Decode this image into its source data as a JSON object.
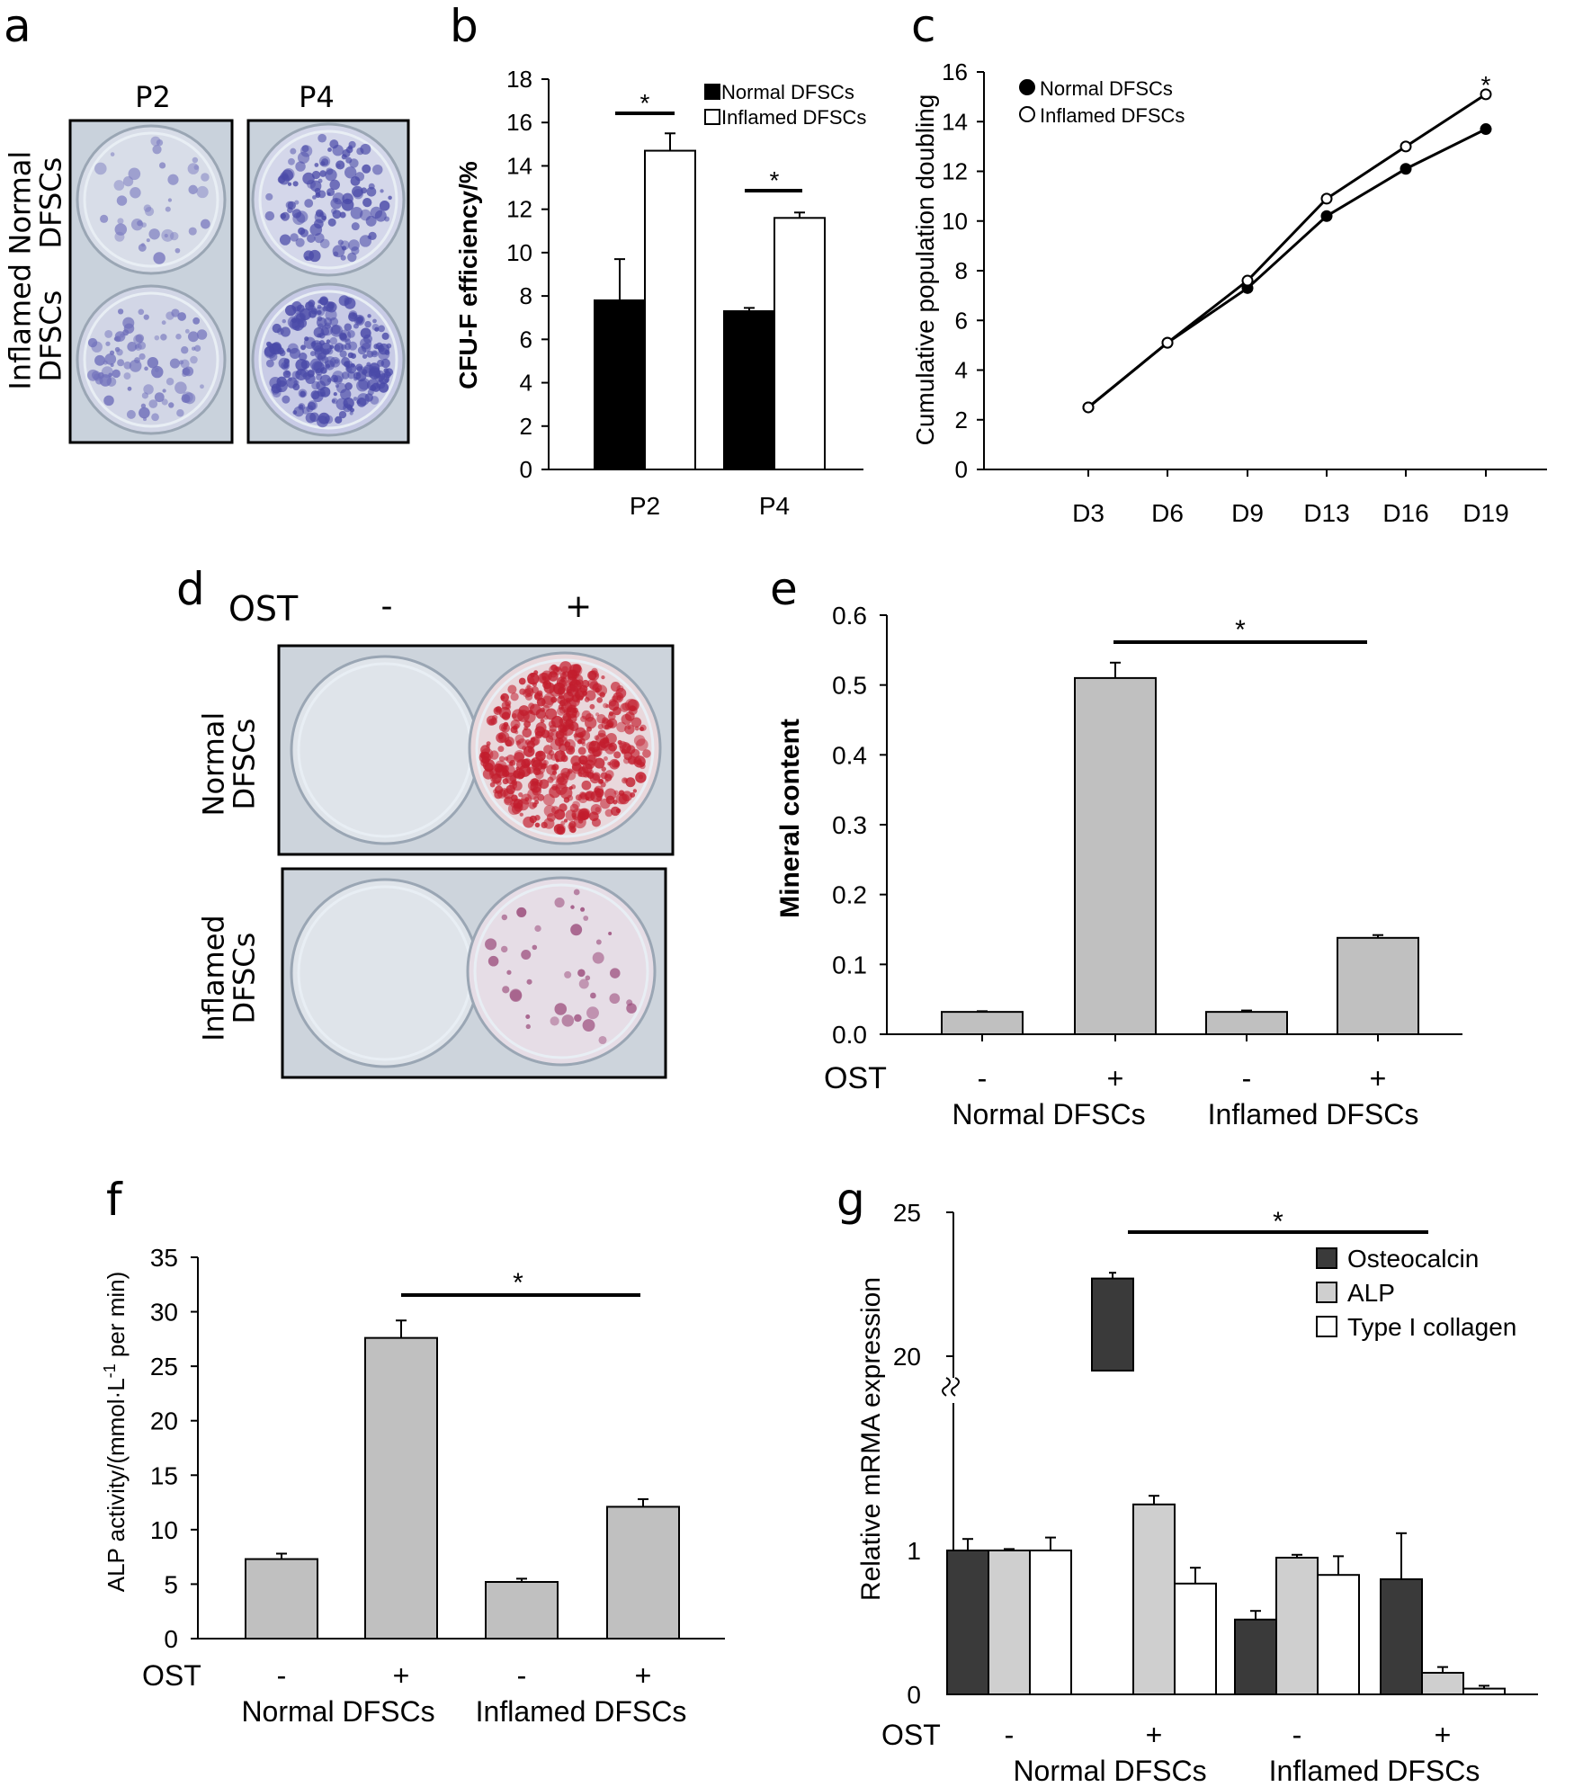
{
  "panels": {
    "a": "a",
    "b": "b",
    "c": "c",
    "d": "d",
    "e": "e",
    "f": "f",
    "g": "g"
  },
  "photo_a": {
    "col1": "P2",
    "col2": "P4",
    "row1_l1": "Normal",
    "row1_l2": "DFSCs",
    "row2_l1": "Inflamed",
    "row2_l2": "DFSCs"
  },
  "photo_d": {
    "ost": "OST",
    "minus": "-",
    "plus": "+",
    "row1_l1": "Normal",
    "row1_l2": "DFSCs",
    "row2_l1": "Inflamed",
    "row2_l2": "DFSCs"
  },
  "colors": {
    "black": "#000000",
    "white": "#ffffff",
    "gray": "#c0c0c0",
    "dark": "#3a3a3a",
    "light": "#cfcfcf",
    "plate_bg": "#c9d2dc",
    "stain_blue": "#4a4aa8",
    "stain_red": "#c21d2d"
  },
  "chart_data": [
    {
      "id": "b",
      "type": "bar",
      "title": "",
      "ylabel": "CFU-F efficiency/%",
      "ylim": [
        0,
        18
      ],
      "yticks": [
        0,
        2,
        4,
        6,
        8,
        10,
        12,
        14,
        16,
        18
      ],
      "categories": [
        "P2",
        "P4"
      ],
      "series": [
        {
          "name": "Normal DFSCs",
          "values": [
            7.8,
            7.3
          ],
          "errors": [
            1.9,
            0.15
          ],
          "color": "#000000"
        },
        {
          "name": "Inflamed DFSCs",
          "values": [
            14.7,
            11.6
          ],
          "errors": [
            0.8,
            0.25
          ],
          "color": "#ffffff"
        }
      ],
      "annotations": [
        "*",
        "*"
      ]
    },
    {
      "id": "c",
      "type": "line",
      "title": "",
      "ylabel": "Cumulative population doubling",
      "ylim": [
        0,
        16
      ],
      "yticks": [
        0,
        2,
        4,
        6,
        8,
        10,
        12,
        14,
        16
      ],
      "categories": [
        "D3",
        "D6",
        "D9",
        "D13",
        "D16",
        "D19"
      ],
      "series": [
        {
          "name": "Normal DFSCs",
          "values": [
            2.5,
            5.1,
            7.3,
            10.2,
            12.1,
            13.7
          ],
          "marker": "filled"
        },
        {
          "name": "Inflamed DFSCs",
          "values": [
            2.5,
            5.1,
            7.6,
            10.9,
            13.0,
            15.1
          ],
          "marker": "open"
        }
      ],
      "annotations": [
        "*"
      ]
    },
    {
      "id": "e",
      "type": "bar",
      "title": "",
      "ylabel": "Mineral content",
      "ylim": [
        0,
        0.6
      ],
      "yticks": [
        "0.0",
        "0.1",
        "0.2",
        "0.3",
        "0.4",
        "0.5",
        "0.6"
      ],
      "ost_label": "OST",
      "signs": [
        "-",
        "+",
        "-",
        "+"
      ],
      "groups": [
        "Normal DFSCs",
        "Inflamed DFSCs"
      ],
      "values": [
        0.032,
        0.51,
        0.032,
        0.138
      ],
      "errors": [
        0.001,
        0.022,
        0.002,
        0.004
      ],
      "annotations": [
        "*"
      ]
    },
    {
      "id": "f",
      "type": "bar",
      "title": "",
      "ylabel_main": "ALP activity/(mmol·L",
      "ylabel_sup": "-1",
      "ylabel_tail": " per min)",
      "ylim": [
        0,
        35
      ],
      "yticks": [
        0,
        5,
        10,
        15,
        20,
        25,
        30,
        35
      ],
      "ost_label": "OST",
      "signs": [
        "-",
        "+",
        "-",
        "+"
      ],
      "groups": [
        "Normal DFSCs",
        "Inflamed DFSCs"
      ],
      "values": [
        7.3,
        27.6,
        5.2,
        12.1
      ],
      "errors": [
        0.5,
        1.6,
        0.3,
        0.7
      ],
      "annotations": [
        "*"
      ]
    },
    {
      "id": "g",
      "type": "bar",
      "title": "",
      "ylabel": "Relative mRMA expression",
      "yticks": [
        "0",
        "1",
        "20",
        "25"
      ],
      "ost_label": "OST",
      "signs": [
        "-",
        "+",
        "-",
        "+"
      ],
      "groups": [
        "Normal DFSCs",
        "Inflamed DFSCs"
      ],
      "series": [
        {
          "name": "Osteocalcin",
          "color": "#3a3a3a",
          "values": [
            1.0,
            22.7,
            0.52,
            0.8
          ],
          "errors": [
            0.08,
            0.2,
            0.06,
            0.32
          ]
        },
        {
          "name": "ALP",
          "color": "#cfcfcf",
          "values": [
            1.0,
            1.32,
            0.95,
            0.15
          ],
          "errors": [
            0.01,
            0.06,
            0.02,
            0.04
          ]
        },
        {
          "name": "Type I collagen",
          "color": "#ffffff",
          "values": [
            1.0,
            0.77,
            0.83,
            0.04
          ],
          "errors": [
            0.09,
            0.11,
            0.13,
            0.02
          ]
        }
      ],
      "annotations": [
        "*"
      ]
    }
  ]
}
